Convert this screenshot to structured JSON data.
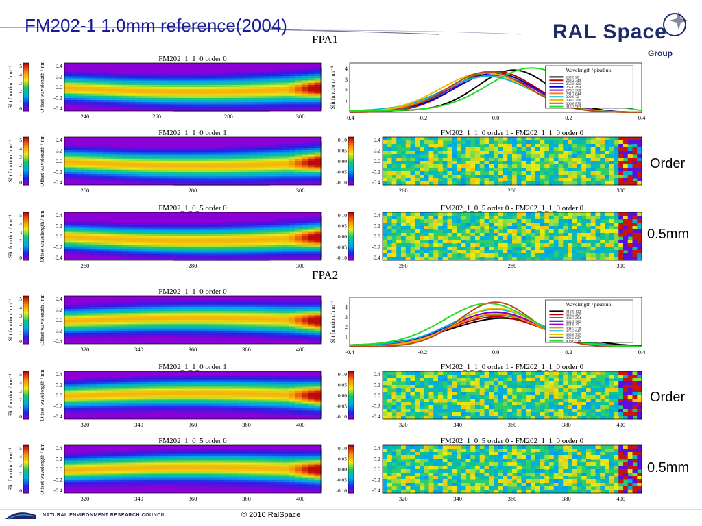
{
  "slide": {
    "title": "FM202-1 1.0mm reference(2004)",
    "copyright": "© 2010 RalSpace",
    "nerc": "NATURAL ENVIRONMENT RESEARCH COUNCIL",
    "logo_main": "RAL Space",
    "logo_sub": "Group"
  },
  "sections": {
    "fpa1": "FPA1",
    "fpa2": "FPA2"
  },
  "side_labels": [
    "Order",
    "0.5mm",
    "Order",
    "0.5mm"
  ],
  "colors": {
    "title": "#1a1a9a",
    "logo": "#1c2a6b",
    "background": "#8c00d8"
  },
  "chart_data": [
    {
      "type": "heatmap",
      "title": "FM202_1_1_0 order 0",
      "xticks": [
        "240",
        "260",
        "280",
        "300"
      ],
      "yticks": [
        "0.4",
        "0.2",
        "0.0",
        "-0.2",
        "-0.4"
      ],
      "ylabel": "Offset wavelength / nm",
      "colorbar_label": "Slit function / nm⁻¹",
      "colorbar_ticks": [
        "5",
        "4",
        "3",
        "2",
        "1",
        "0"
      ]
    },
    {
      "type": "heatmap",
      "title": "FM202_1_1_0 order 1",
      "xticks": [
        "260",
        "280",
        "300"
      ],
      "yticks": [
        "0.4",
        "0.2",
        "0.0",
        "-0.2",
        "-0.4"
      ],
      "ylabel": "Offset wavelength / nm",
      "colorbar_label": "Slit function / nm⁻¹",
      "colorbar_ticks": [
        "5",
        "4",
        "3",
        "2",
        "1",
        "0"
      ]
    },
    {
      "type": "heatmap",
      "title": "FM202_1_0_5 order 0",
      "xticks": [
        "260",
        "280",
        "300"
      ],
      "yticks": [
        "0.4",
        "0.2",
        "0.0",
        "-0.2",
        "-0.4"
      ],
      "ylabel": "Offset wavelength / nm",
      "colorbar_label": "Slit function / nm⁻¹",
      "colorbar_ticks": [
        "5",
        "4",
        "3",
        "2",
        "1",
        "0"
      ]
    },
    {
      "type": "heatmap",
      "title": "FM202_1_1_0 order 0",
      "xticks": [
        "320",
        "340",
        "360",
        "380",
        "400"
      ],
      "yticks": [
        "0.4",
        "0.2",
        "0.0",
        "-0.2",
        "-0.4"
      ],
      "ylabel": "Offset wavelength / nm",
      "colorbar_label": "Slit function / nm⁻¹",
      "colorbar_ticks": [
        "5",
        "4",
        "3",
        "2",
        "1",
        "0"
      ]
    },
    {
      "type": "heatmap",
      "title": "FM202_1_1_0 order 1",
      "xticks": [
        "320",
        "340",
        "360",
        "380",
        "400"
      ],
      "yticks": [
        "0.4",
        "0.2",
        "0.0",
        "-0.2",
        "-0.4"
      ],
      "ylabel": "Offset wavelength / nm",
      "colorbar_label": "Slit function / nm⁻¹",
      "colorbar_ticks": [
        "5",
        "4",
        "3",
        "2",
        "1",
        "0"
      ]
    },
    {
      "type": "heatmap",
      "title": "FM202_1_0_5 order 0",
      "xticks": [
        "320",
        "340",
        "360",
        "380",
        "400"
      ],
      "yticks": [
        "0.4",
        "0.2",
        "0.0",
        "-0.2",
        "-0.4"
      ],
      "ylabel": "Offset wavelength / nm",
      "colorbar_label": "Slit function / nm⁻¹",
      "colorbar_ticks": [
        "5",
        "4",
        "3",
        "2",
        "1",
        "0"
      ]
    },
    {
      "type": "heatmap",
      "title": "FM202_1_1_0 order 1 - FM202_1_1_0 order 0",
      "xticks": [
        "260",
        "280",
        "300"
      ],
      "yticks": [
        "0.4",
        "0.2",
        "0.0",
        "-0.2",
        "-0.4"
      ],
      "colorbar_ticks": [
        "0.10",
        "0.05",
        "0.00",
        "-0.05",
        "-0.10"
      ]
    },
    {
      "type": "heatmap",
      "title": "FM202_1_0_5 order 0 - FM202_1_1_0 order 0",
      "xticks": [
        "260",
        "280",
        "300"
      ],
      "yticks": [
        "0.4",
        "0.2",
        "0.0",
        "-0.2",
        "-0.4"
      ],
      "colorbar_ticks": [
        "0.10",
        "0.05",
        "0.00",
        "-0.05",
        "-0.10"
      ]
    },
    {
      "type": "heatmap",
      "title": "FM202_1_1_0 order 1 - FM202_1_1_0 order 0",
      "xticks": [
        "320",
        "340",
        "360",
        "380",
        "400"
      ],
      "yticks": [
        "0.4",
        "0.2",
        "0.0",
        "-0.2",
        "-0.4"
      ],
      "colorbar_ticks": [
        "0.10",
        "0.05",
        "0.00",
        "-0.05",
        "-0.10"
      ]
    },
    {
      "type": "heatmap",
      "title": "FM202_1_0_5 order 0 - FM202_1_1_0 order 0",
      "xticks": [
        "320",
        "340",
        "360",
        "380",
        "400"
      ],
      "yticks": [
        "0.4",
        "0.2",
        "0.0",
        "-0.2",
        "-0.4"
      ],
      "colorbar_ticks": [
        "0.10",
        "0.05",
        "0.00",
        "-0.05",
        "-0.10"
      ]
    },
    {
      "type": "line",
      "ylabel": "Slit function / nm⁻¹",
      "xlim": [
        -0.4,
        0.4
      ],
      "ylim": [
        0,
        4.5
      ],
      "xticks": [
        "-0.4",
        "-0.2",
        "0.0",
        "0.2",
        "0.4"
      ],
      "yticks": [
        "1",
        "2",
        "3",
        "4"
      ],
      "legend_title": "Wavelength / pixel no.",
      "series": [
        {
          "name": "239.9 28",
          "color": "#000000",
          "center": 0.05,
          "width": 0.1,
          "peak": 3.8
        },
        {
          "name": "248.2 349",
          "color": "#c00000",
          "center": 0.0,
          "width": 0.11,
          "peak": 3.75
        },
        {
          "name": "256.6 421",
          "color": "#2e8b2e",
          "center": -0.01,
          "width": 0.11,
          "peak": 3.7
        },
        {
          "name": "265.0 494",
          "color": "#0000cc",
          "center": 0.0,
          "width": 0.11,
          "peak": 3.5
        },
        {
          "name": "273.3 568",
          "color": "#8800cc",
          "center": -0.01,
          "width": 0.12,
          "peak": 3.4
        },
        {
          "name": "281.7 644",
          "color": "#ff8800",
          "center": -0.02,
          "width": 0.12,
          "peak": 3.3
        },
        {
          "name": "290.0 72",
          "color": "#00b8e0",
          "center": -0.02,
          "width": 0.12,
          "peak": 3.2
        },
        {
          "name": "298.5 796",
          "color": "#e8c000",
          "center": -0.03,
          "width": 0.12,
          "peak": 3.6
        },
        {
          "name": "306.8 875",
          "color": "#b84820",
          "center": -0.02,
          "width": 0.11,
          "peak": 3.7
        },
        {
          "name": "315.2 963",
          "color": "#22dd22",
          "center": 0.1,
          "width": 0.12,
          "peak": 4.0
        }
      ]
    },
    {
      "type": "line",
      "ylabel": "Slit function / nm⁻¹",
      "xlim": [
        -0.4,
        0.4
      ],
      "ylim": [
        0,
        5
      ],
      "xticks": [
        "-0.4",
        "-0.2",
        "0.0",
        "0.2",
        "0.4"
      ],
      "yticks": [
        "1",
        "2",
        "3",
        "4"
      ],
      "legend_title": "Wavelength / pixel no.",
      "series": [
        {
          "name": "312.9 122",
          "color": "#000000",
          "center": 0.02,
          "width": 0.14,
          "peak": 2.8
        },
        {
          "name": "323.3 207",
          "color": "#c00000",
          "center": 0.0,
          "width": 0.13,
          "peak": 3.0
        },
        {
          "name": "333.7 294",
          "color": "#2e8b2e",
          "center": 0.0,
          "width": 0.13,
          "peak": 3.2
        },
        {
          "name": "344.2 382",
          "color": "#0000cc",
          "center": 0.0,
          "width": 0.12,
          "peak": 3.4
        },
        {
          "name": "354.6 47",
          "color": "#8800cc",
          "center": 0.0,
          "width": 0.12,
          "peak": 3.5
        },
        {
          "name": "364.9 558",
          "color": "#ff8800",
          "center": 0.0,
          "width": 0.12,
          "peak": 3.3
        },
        {
          "name": "375.3 647",
          "color": "#00b8e0",
          "center": 0.0,
          "width": 0.12,
          "peak": 3.7
        },
        {
          "name": "385.8 737",
          "color": "#e8c000",
          "center": 0.0,
          "width": 0.11,
          "peak": 3.9
        },
        {
          "name": "396.2 827",
          "color": "#b84820",
          "center": 0.0,
          "width": 0.1,
          "peak": 4.5
        },
        {
          "name": "406.6 918",
          "color": "#22dd22",
          "center": -0.02,
          "width": 0.12,
          "peak": 4.3
        }
      ]
    }
  ]
}
